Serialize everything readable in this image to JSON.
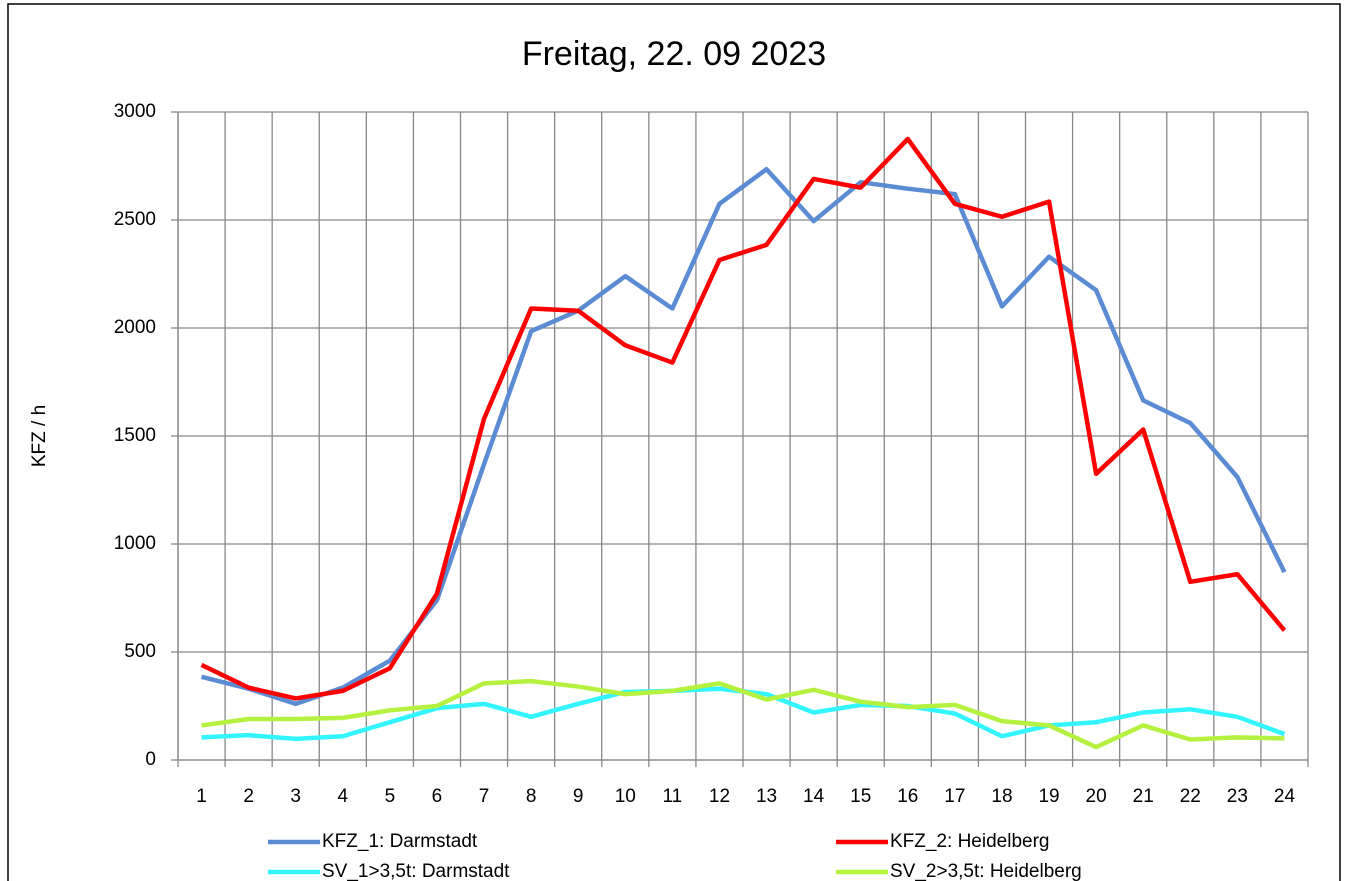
{
  "chart_data": {
    "type": "line",
    "title": "Freitag, 22. 09 2023",
    "y_label": "KFZ / h",
    "categories": [
      "1",
      "2",
      "3",
      "4",
      "5",
      "6",
      "7",
      "8",
      "9",
      "10",
      "11",
      "12",
      "13",
      "14",
      "15",
      "16",
      "17",
      "18",
      "19",
      "20",
      "21",
      "22",
      "23",
      "24"
    ],
    "series": [
      {
        "name": "KFZ_1: Darmstadt",
        "color": "#5b8bd3",
        "values": [
          385,
          330,
          260,
          335,
          460,
          740,
          1370,
          1985,
          2080,
          2240,
          2090,
          2575,
          2735,
          2495,
          2675,
          2645,
          2620,
          2100,
          2330,
          2175,
          1665,
          1560,
          1310,
          870
        ]
      },
      {
        "name": "KFZ_2: Heidelberg",
        "color": "#ff0000",
        "values": [
          440,
          335,
          285,
          320,
          425,
          770,
          1580,
          2090,
          2080,
          1920,
          1840,
          2315,
          2385,
          2690,
          2650,
          2875,
          2575,
          2515,
          2585,
          1325,
          1530,
          825,
          860,
          600
        ]
      },
      {
        "name": "SV_1>3,5t: Darmstadt",
        "color": "#33f5ff",
        "values": [
          105,
          115,
          98,
          110,
          175,
          240,
          260,
          200,
          260,
          315,
          320,
          330,
          305,
          220,
          255,
          250,
          215,
          110,
          160,
          175,
          220,
          235,
          200,
          120
        ]
      },
      {
        "name": "SV_2>3,5t: Heidelberg",
        "color": "#b5f23f",
        "values": [
          160,
          190,
          190,
          195,
          230,
          250,
          355,
          365,
          340,
          305,
          320,
          355,
          280,
          325,
          270,
          245,
          255,
          180,
          160,
          60,
          160,
          95,
          105,
          100
        ]
      }
    ],
    "ylim": [
      0,
      3000
    ],
    "yticks": [
      0,
      500,
      1000,
      1500,
      2000,
      2500,
      3000
    ],
    "grid": true,
    "legend": "bottom"
  }
}
